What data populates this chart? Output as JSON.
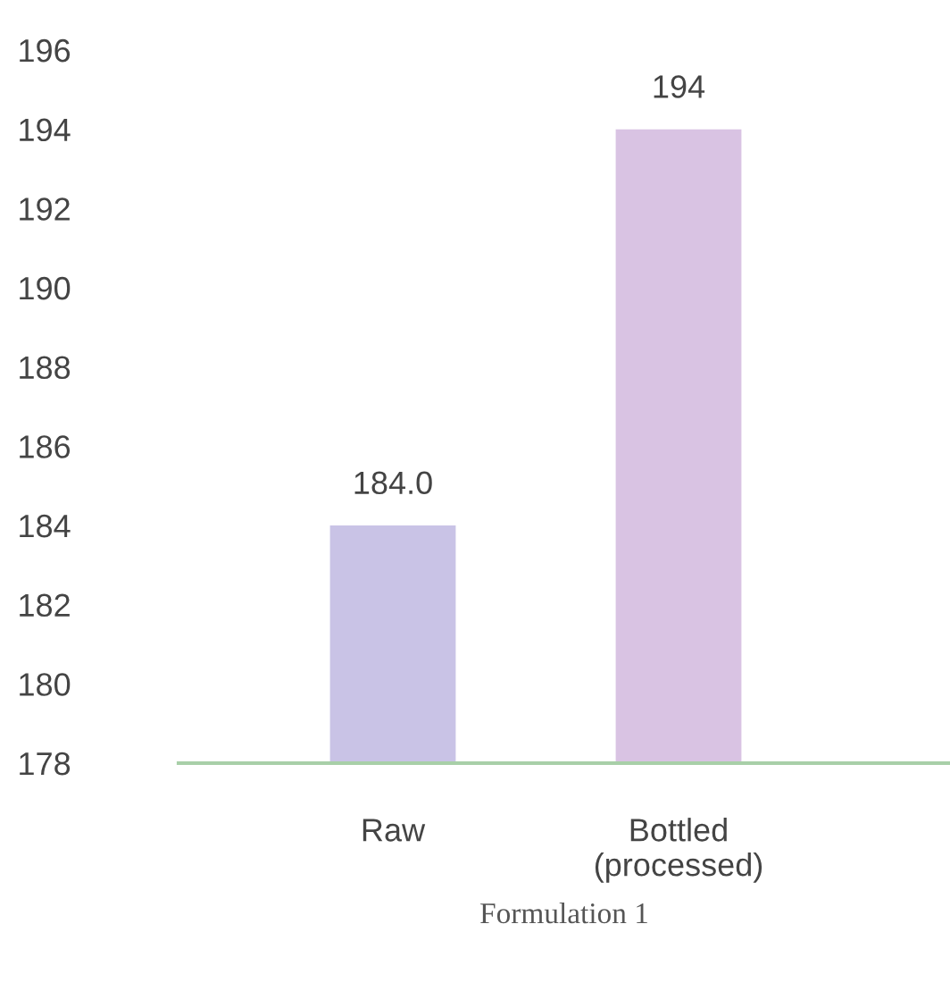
{
  "chart_data": {
    "type": "bar",
    "categories": [
      "Raw",
      "Bottled\n(processed)"
    ],
    "values": [
      184.0,
      194
    ],
    "value_labels": [
      "184.0",
      "194"
    ],
    "colors": [
      "#c9c3e6",
      "#d9c3e3"
    ],
    "ylim": [
      178,
      196
    ],
    "yticks": [
      178,
      180,
      182,
      184,
      186,
      188,
      190,
      192,
      194,
      196
    ],
    "xlabel": "Formulation 1",
    "grid": false,
    "legend": false
  }
}
